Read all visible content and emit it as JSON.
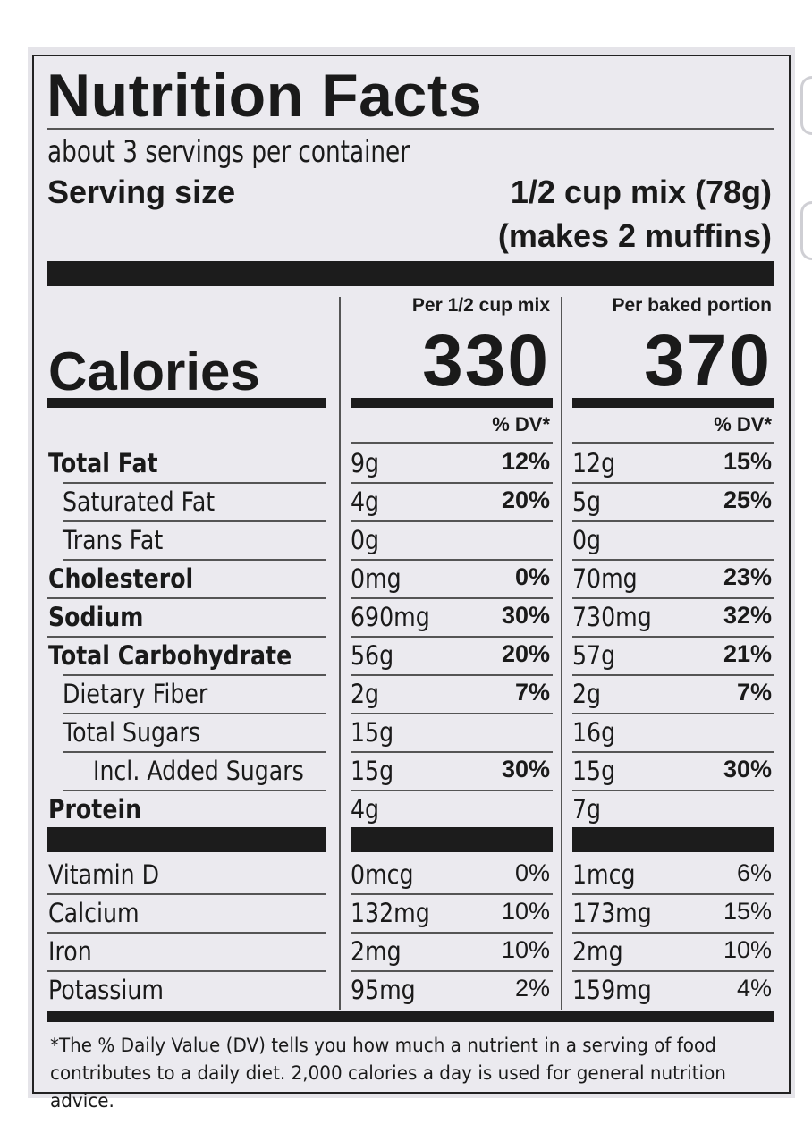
{
  "title": "Nutrition Facts",
  "servings_per_container": "about 3 servings per container",
  "serving_size_label": "Serving size",
  "serving_size_value": "1/2 cup mix (78g)",
  "serving_size_note": "(makes 2 muffins)",
  "columns": [
    {
      "header": "Per 1/2 cup mix",
      "calories": "330",
      "dv_header": "% DV*"
    },
    {
      "header": "Per baked portion",
      "calories": "370",
      "dv_header": "% DV*"
    }
  ],
  "calories_label": "Calories",
  "nutrients": [
    {
      "label": "Total Fat",
      "bold": true,
      "indent": 0,
      "mix_amt": "9g",
      "mix_dv": "12%",
      "baked_amt": "12g",
      "baked_dv": "15%"
    },
    {
      "label": "Saturated Fat",
      "bold": false,
      "indent": 1,
      "mix_amt": "4g",
      "mix_dv": "20%",
      "baked_amt": "5g",
      "baked_dv": "25%"
    },
    {
      "label": "Trans Fat",
      "bold": false,
      "indent": 1,
      "mix_amt": "0g",
      "mix_dv": "",
      "baked_amt": "0g",
      "baked_dv": ""
    },
    {
      "label": "Cholesterol",
      "bold": true,
      "indent": 0,
      "mix_amt": "0mg",
      "mix_dv": "0%",
      "baked_amt": "70mg",
      "baked_dv": "23%"
    },
    {
      "label": "Sodium",
      "bold": true,
      "indent": 0,
      "mix_amt": "690mg",
      "mix_dv": "30%",
      "baked_amt": "730mg",
      "baked_dv": "32%"
    },
    {
      "label": "Total Carbohydrate",
      "bold": true,
      "indent": 0,
      "mix_amt": "56g",
      "mix_dv": "20%",
      "baked_amt": "57g",
      "baked_dv": "21%"
    },
    {
      "label": "Dietary Fiber",
      "bold": false,
      "indent": 1,
      "mix_amt": "2g",
      "mix_dv": "7%",
      "baked_amt": "2g",
      "baked_dv": "7%"
    },
    {
      "label": "Total Sugars",
      "bold": false,
      "indent": 1,
      "mix_amt": "15g",
      "mix_dv": "",
      "baked_amt": "16g",
      "baked_dv": ""
    },
    {
      "label": "Incl. Added Sugars",
      "bold": false,
      "indent": 2,
      "mix_amt": "15g",
      "mix_dv": "30%",
      "baked_amt": "15g",
      "baked_dv": "30%"
    },
    {
      "label": "Protein",
      "bold": true,
      "indent": 0,
      "mix_amt": "4g",
      "mix_dv": "",
      "baked_amt": "7g",
      "baked_dv": ""
    }
  ],
  "vitamins": [
    {
      "label": "Vitamin D",
      "mix_amt": "0mcg",
      "mix_dv": "0%",
      "baked_amt": "1mcg",
      "baked_dv": "6%"
    },
    {
      "label": "Calcium",
      "mix_amt": "132mg",
      "mix_dv": "10%",
      "baked_amt": "173mg",
      "baked_dv": "15%"
    },
    {
      "label": "Iron",
      "mix_amt": "2mg",
      "mix_dv": "10%",
      "baked_amt": "2mg",
      "baked_dv": "10%"
    },
    {
      "label": "Potassium",
      "mix_amt": "95mg",
      "mix_dv": "2%",
      "baked_amt": "159mg",
      "baked_dv": "4%"
    }
  ],
  "footnote": "*The % Daily Value (DV) tells you how much a nutrient in a serving of food contributes to a daily diet. 2,000 calories a day is used for general nutrition advice."
}
